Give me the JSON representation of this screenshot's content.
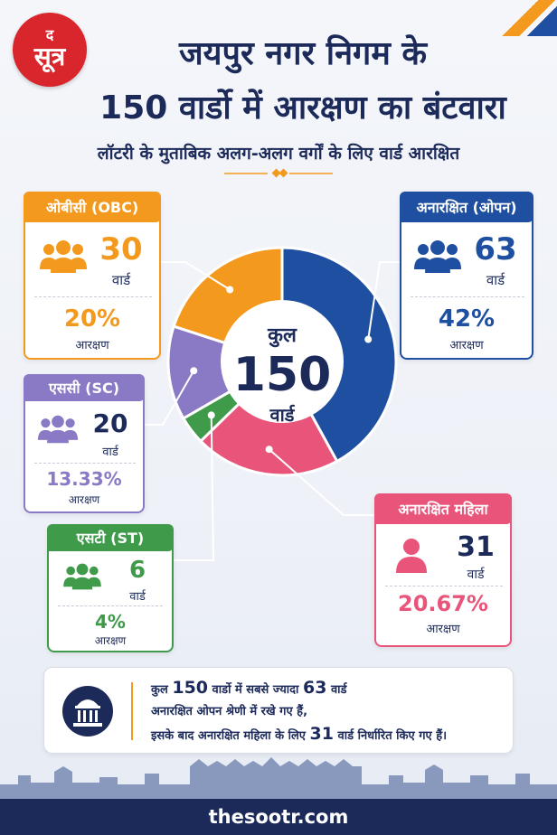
{
  "logo": {
    "mini": "द",
    "main": "सूत्र"
  },
  "header": {
    "title_line1": "जयपुर नगर निगम के",
    "title_line2": "150 वार्डो में आरक्षण का बंटवारा",
    "subtitle": "लॉटरी के मुताबिक अलग-अलग वर्गों के लिए वार्ड आरक्षित"
  },
  "center": {
    "top": "कुल",
    "number": "150",
    "bottom": "वार्ड"
  },
  "cards": [
    {
      "label": "ओबीसी (OBC)",
      "count": "30",
      "unit": "वार्ड",
      "percent": "20%",
      "percent_label": "आरक्षण"
    },
    {
      "label": "अनारक्षित (ओपन)",
      "count": "63",
      "unit": "वार्ड",
      "percent": "42%",
      "percent_label": "आरक्षण"
    },
    {
      "label": "एससी (SC)",
      "count": "20",
      "unit": "वार्ड",
      "percent": "13.33%",
      "percent_label": "आरक्षण"
    },
    {
      "label": "अनारक्षित महिला",
      "count": "31",
      "unit": "वार्ड",
      "percent": "20.67%",
      "percent_label": "आरक्षण"
    },
    {
      "label": "एसटी (ST)",
      "count": "6",
      "unit": "वार्ड",
      "percent": "4%",
      "percent_label": "आरक्षण"
    }
  ],
  "colors": {
    "obc": "#f39a1e",
    "open": "#1f4fa0",
    "sc": "#8a79c4",
    "women": "#e9557a",
    "st": "#3f9a4a",
    "navy": "#1c2a5a"
  },
  "chart_data": {
    "type": "pie",
    "donut": true,
    "categories": [
      "अनारक्षित (ओपन)",
      "अनारक्षित महिला",
      "एसटी (ST)",
      "एससी (SC)",
      "ओबीसी (OBC)"
    ],
    "values": [
      63,
      31,
      6,
      20,
      30
    ],
    "percentages": [
      42,
      20.67,
      4,
      13.33,
      20
    ],
    "colors": [
      "#1f4fa0",
      "#e9557a",
      "#3f9a4a",
      "#8a79c4",
      "#f39a1e"
    ],
    "total": 150
  },
  "note": {
    "line1_pre": "कुल",
    "line1_num1": "150",
    "line1_mid": "वार्डो में सबसे ज्यादा",
    "line1_num2": "63",
    "line1_post": "वार्ड",
    "line2": "अनारक्षित ओपन श्रेणी में रखे गए हैं,",
    "line3_pre": "इसके बाद अनारक्षित महिला के लिए",
    "line3_num": "31",
    "line3_post": "वार्ड निर्धारित किए गए हैं।"
  },
  "footer": {
    "site": "thesootr.com"
  }
}
